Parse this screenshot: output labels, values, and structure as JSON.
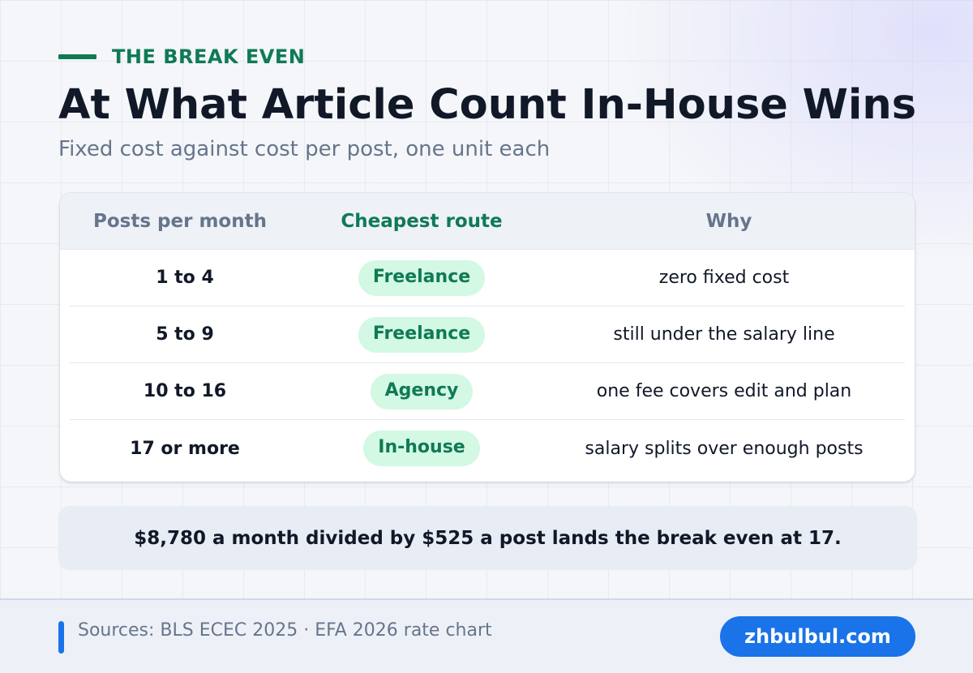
{
  "header": {
    "kicker": "THE BREAK EVEN",
    "title": "At What Article Count In-House Wins",
    "subtitle": "Fixed cost against cost per post, one unit each"
  },
  "table": {
    "columns": [
      "Posts per month",
      "Cheapest route",
      "Why"
    ],
    "rows": [
      {
        "posts": "1 to 4",
        "route": "Freelance",
        "why": "zero fixed cost"
      },
      {
        "posts": "5 to 9",
        "route": "Freelance",
        "why": "still under the salary line"
      },
      {
        "posts": "10 to 16",
        "route": "Agency",
        "why": "one fee covers edit and plan"
      },
      {
        "posts": "17 or more",
        "route": "In-house",
        "why": "salary splits over enough posts"
      }
    ]
  },
  "callout": "$8,780 a month divided by $525 a post lands the break even at 17.",
  "footer": {
    "sources": "Sources: BLS ECEC 2025 · EFA 2026 rate chart",
    "brand": "zhbulbul.com"
  },
  "colors": {
    "accent_green": "#0f7a55",
    "pill_bg": "#d3f8e4",
    "brand_blue": "#1a73e8",
    "heading": "#111827",
    "muted": "#67758b"
  }
}
